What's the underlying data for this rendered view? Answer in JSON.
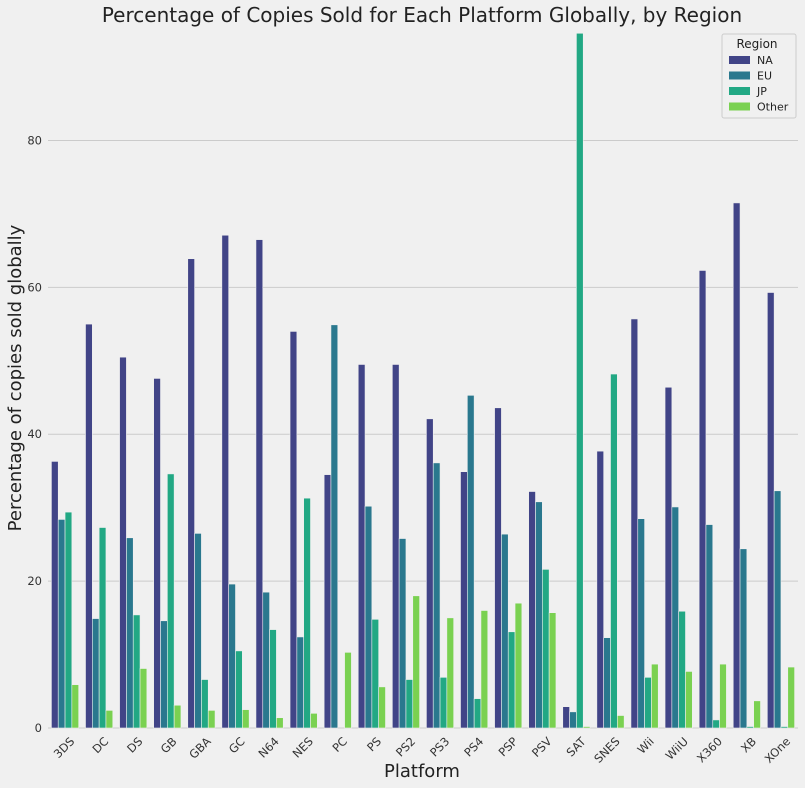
{
  "chart_data": {
    "type": "bar",
    "title": "Percentage of Copies Sold for Each Platform Globally, by Region",
    "xlabel": "Platform",
    "ylabel": "Percentage of copies sold globally",
    "ylim": [
      0,
      94.5
    ],
    "yticks": [
      0,
      20,
      40,
      60,
      80
    ],
    "grid": "horizontal",
    "legend": {
      "title": "Region",
      "placement": "top-right"
    },
    "categories": [
      "3DS",
      "DC",
      "DS",
      "GB",
      "GBA",
      "GC",
      "N64",
      "NES",
      "PC",
      "PS",
      "PS2",
      "PS3",
      "PS4",
      "PSP",
      "PSV",
      "SAT",
      "SNES",
      "Wii",
      "WiiU",
      "X360",
      "XB",
      "XOne"
    ],
    "series": [
      {
        "name": "NA",
        "color": "#414487",
        "values": [
          36.3,
          55.0,
          50.5,
          47.6,
          63.9,
          67.1,
          66.5,
          54.0,
          34.5,
          49.5,
          49.5,
          42.1,
          34.9,
          43.6,
          32.2,
          2.9,
          37.7,
          55.7,
          46.4,
          62.3,
          71.5,
          59.3
        ]
      },
      {
        "name": "EU",
        "color": "#2a788e",
        "values": [
          28.4,
          14.9,
          25.9,
          14.6,
          26.5,
          19.6,
          18.5,
          12.4,
          54.9,
          30.2,
          25.8,
          36.1,
          45.3,
          26.4,
          30.8,
          2.2,
          12.3,
          28.5,
          30.1,
          27.7,
          24.4,
          32.3
        ]
      },
      {
        "name": "JP",
        "color": "#22a884",
        "values": [
          29.4,
          27.3,
          15.4,
          34.6,
          6.6,
          10.5,
          13.4,
          31.3,
          0.0,
          14.8,
          6.6,
          6.9,
          4.0,
          13.1,
          21.6,
          94.6,
          48.2,
          6.9,
          15.9,
          1.1,
          0.2,
          0.2
        ]
      },
      {
        "name": "Other",
        "color": "#7ad151",
        "values": [
          5.9,
          2.4,
          8.1,
          3.1,
          2.4,
          2.5,
          1.4,
          2.0,
          10.3,
          5.6,
          18.0,
          15.0,
          16.0,
          17.0,
          15.7,
          0.2,
          1.7,
          8.7,
          7.7,
          8.7,
          3.7,
          8.3
        ]
      }
    ]
  }
}
